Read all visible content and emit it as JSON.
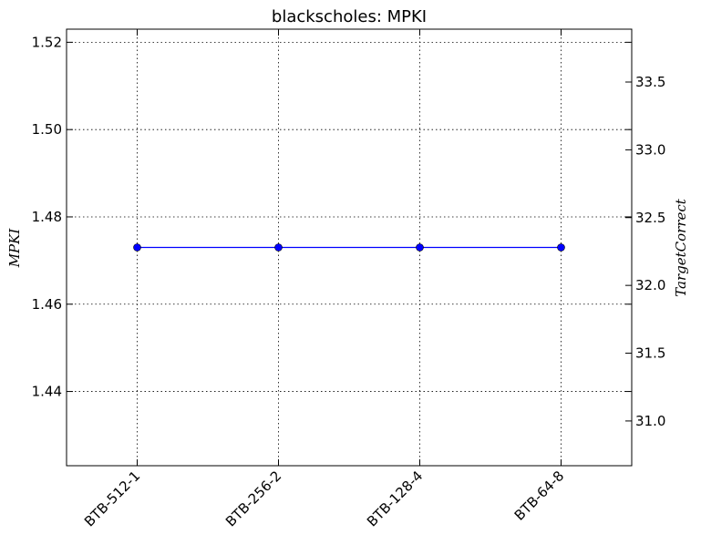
{
  "chart_data": {
    "type": "line",
    "title": "blackscholes: MPKI",
    "ylabel": "MPKI",
    "ylabel_right": "TargetCorrect",
    "categories": [
      "BTB-512-1",
      "BTB-256-2",
      "BTB-128-4",
      "BTB-64-8"
    ],
    "series": [
      {
        "values": [
          1.473,
          1.473,
          1.473,
          1.473
        ],
        "color": "#0000ff",
        "marker": "circle",
        "axis": "left"
      }
    ],
    "ylim": [
      1.423,
      1.523
    ],
    "yticks": [
      "1.44",
      "1.46",
      "1.48",
      "1.50",
      "1.52"
    ],
    "ylim_right": [
      30.67,
      33.89
    ],
    "yticks_right": [
      "31.0",
      "31.5",
      "32.0",
      "32.5",
      "33.0",
      "33.5"
    ],
    "grid": true,
    "xtick_rotation_deg": 45
  }
}
